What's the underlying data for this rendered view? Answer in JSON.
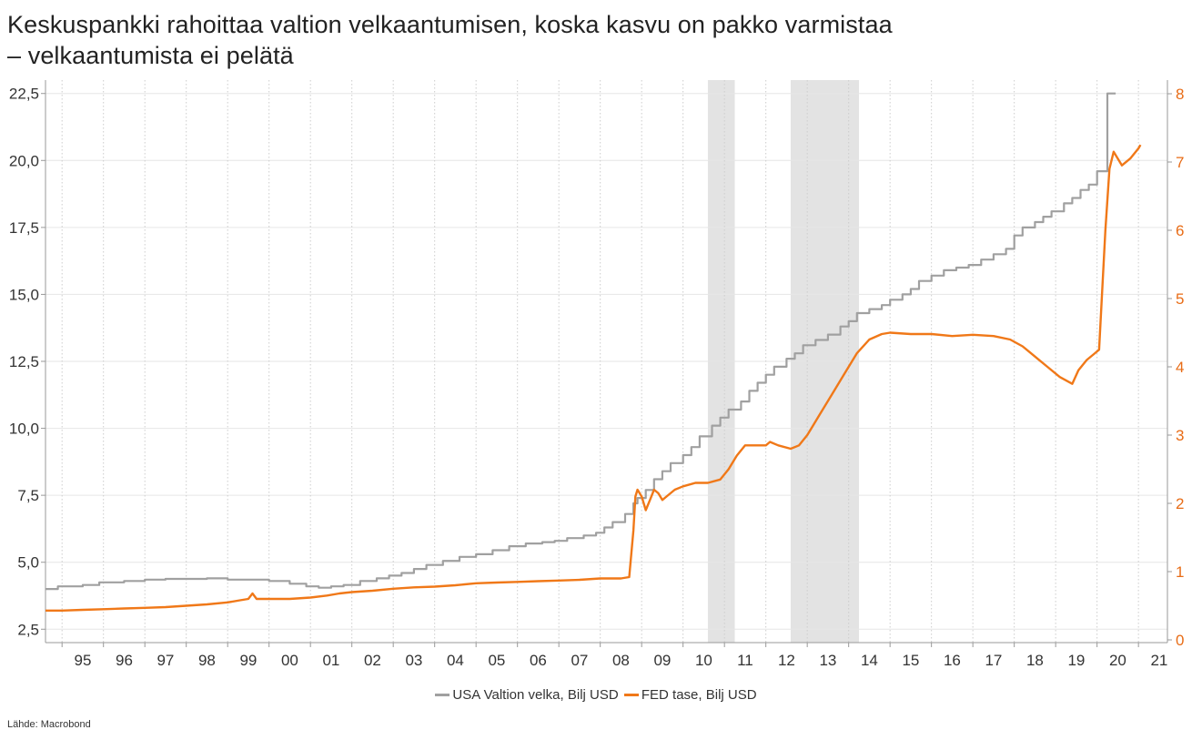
{
  "title_lines": [
    "Keskuspankki rahoittaa valtion velkaantumisen, koska kasvu on pakko varmistaa",
    "– velkaantumista ei pelätä"
  ],
  "source": "Lähde: Macrobond",
  "colors": {
    "debt": "#a0a0a0",
    "fed": "#f07818",
    "recession": "#e3e3e3",
    "grid": "#cccccc",
    "right_axis_text": "#e86c16"
  },
  "chart_data": {
    "type": "line",
    "x_unit": "year",
    "x_tick_labels": [
      "95",
      "96",
      "97",
      "98",
      "99",
      "00",
      "01",
      "02",
      "03",
      "04",
      "05",
      "06",
      "07",
      "08",
      "09",
      "10",
      "11",
      "12",
      "13",
      "14",
      "15",
      "16",
      "17",
      "18",
      "19",
      "20",
      "21"
    ],
    "x_tick_years": [
      1995,
      1996,
      1997,
      1998,
      1999,
      2000,
      2001,
      2002,
      2003,
      2004,
      2005,
      2006,
      2007,
      2008,
      2009,
      2010,
      2011,
      2012,
      2013,
      2014,
      2015,
      2016,
      2017,
      2018,
      2019,
      2020,
      2021
    ],
    "xlim": [
      1994.6,
      2021.7
    ],
    "left_axis": {
      "ylim": [
        2.0,
        23.0
      ],
      "ticks": [
        2.5,
        5.0,
        7.5,
        10.0,
        12.5,
        15.0,
        17.5,
        20.0,
        22.5
      ],
      "tick_labels": [
        "2,5",
        "5,0",
        "7,5",
        "10,0",
        "12,5",
        "15,0",
        "17,5",
        "20,0",
        "22,5"
      ]
    },
    "right_axis": {
      "ylim": [
        -0.04,
        8.2
      ],
      "ticks": [
        0,
        1,
        2,
        3,
        4,
        5,
        6,
        7,
        8
      ],
      "tick_labels": [
        "0",
        "1",
        "2",
        "3",
        "4",
        "5",
        "6",
        "7",
        "8"
      ]
    },
    "shaded_periods": [
      [
        2010.6,
        2011.25
      ],
      [
        2012.6,
        2014.25
      ]
    ],
    "legend": {
      "placement": "bottom-center",
      "entries": [
        "USA Valtion velka, Bilj USD",
        "FED tase, Bilj USD"
      ]
    },
    "series": [
      {
        "name": "USA Valtion velka, Bilj USD",
        "axis": "left",
        "step": true,
        "points": [
          [
            1994.6,
            4.0
          ],
          [
            1994.9,
            4.1
          ],
          [
            1995.5,
            4.15
          ],
          [
            1995.9,
            4.25
          ],
          [
            1996.5,
            4.3
          ],
          [
            1997.0,
            4.35
          ],
          [
            1997.5,
            4.38
          ],
          [
            1998.0,
            4.38
          ],
          [
            1998.5,
            4.4
          ],
          [
            1999.0,
            4.35
          ],
          [
            1999.5,
            4.35
          ],
          [
            2000.0,
            4.3
          ],
          [
            2000.5,
            4.2
          ],
          [
            2000.9,
            4.1
          ],
          [
            2001.2,
            4.05
          ],
          [
            2001.5,
            4.1
          ],
          [
            2001.8,
            4.15
          ],
          [
            2002.2,
            4.3
          ],
          [
            2002.6,
            4.4
          ],
          [
            2002.9,
            4.5
          ],
          [
            2003.2,
            4.6
          ],
          [
            2003.5,
            4.75
          ],
          [
            2003.8,
            4.9
          ],
          [
            2004.2,
            5.05
          ],
          [
            2004.6,
            5.2
          ],
          [
            2005.0,
            5.3
          ],
          [
            2005.4,
            5.45
          ],
          [
            2005.8,
            5.6
          ],
          [
            2006.2,
            5.7
          ],
          [
            2006.6,
            5.75
          ],
          [
            2006.9,
            5.8
          ],
          [
            2007.2,
            5.9
          ],
          [
            2007.6,
            6.0
          ],
          [
            2007.9,
            6.1
          ],
          [
            2008.1,
            6.3
          ],
          [
            2008.3,
            6.5
          ],
          [
            2008.6,
            6.8
          ],
          [
            2008.8,
            7.2
          ],
          [
            2008.9,
            7.4
          ],
          [
            2009.1,
            7.7
          ],
          [
            2009.3,
            8.1
          ],
          [
            2009.5,
            8.4
          ],
          [
            2009.7,
            8.7
          ],
          [
            2010.0,
            9.0
          ],
          [
            2010.2,
            9.3
          ],
          [
            2010.4,
            9.7
          ],
          [
            2010.7,
            10.1
          ],
          [
            2010.9,
            10.4
          ],
          [
            2011.1,
            10.7
          ],
          [
            2011.4,
            11.0
          ],
          [
            2011.6,
            11.4
          ],
          [
            2011.8,
            11.7
          ],
          [
            2012.0,
            12.0
          ],
          [
            2012.2,
            12.3
          ],
          [
            2012.5,
            12.6
          ],
          [
            2012.7,
            12.8
          ],
          [
            2012.9,
            13.1
          ],
          [
            2013.2,
            13.3
          ],
          [
            2013.5,
            13.5
          ],
          [
            2013.8,
            13.8
          ],
          [
            2014.0,
            14.0
          ],
          [
            2014.2,
            14.3
          ],
          [
            2014.5,
            14.45
          ],
          [
            2014.8,
            14.6
          ],
          [
            2015.0,
            14.8
          ],
          [
            2015.3,
            15.0
          ],
          [
            2015.5,
            15.2
          ],
          [
            2015.7,
            15.5
          ],
          [
            2016.0,
            15.7
          ],
          [
            2016.3,
            15.9
          ],
          [
            2016.6,
            16.0
          ],
          [
            2016.9,
            16.1
          ],
          [
            2017.2,
            16.3
          ],
          [
            2017.5,
            16.5
          ],
          [
            2017.8,
            16.7
          ],
          [
            2018.0,
            17.2
          ],
          [
            2018.2,
            17.5
          ],
          [
            2018.5,
            17.7
          ],
          [
            2018.7,
            17.9
          ],
          [
            2018.9,
            18.1
          ],
          [
            2019.2,
            18.4
          ],
          [
            2019.4,
            18.6
          ],
          [
            2019.6,
            18.9
          ],
          [
            2019.8,
            19.1
          ],
          [
            2020.0,
            19.6
          ],
          [
            2020.25,
            22.5
          ],
          [
            2020.45,
            22.5
          ]
        ]
      },
      {
        "name": "FED tase, Bilj USD",
        "axis": "right",
        "step": false,
        "points": [
          [
            1994.6,
            0.43
          ],
          [
            1995.0,
            0.43
          ],
          [
            1995.5,
            0.44
          ],
          [
            1996.0,
            0.45
          ],
          [
            1996.5,
            0.46
          ],
          [
            1997.0,
            0.47
          ],
          [
            1997.5,
            0.48
          ],
          [
            1998.0,
            0.5
          ],
          [
            1998.5,
            0.52
          ],
          [
            1999.0,
            0.55
          ],
          [
            1999.3,
            0.58
          ],
          [
            1999.5,
            0.6
          ],
          [
            1999.6,
            0.68
          ],
          [
            1999.7,
            0.6
          ],
          [
            2000.0,
            0.6
          ],
          [
            2000.5,
            0.6
          ],
          [
            2001.0,
            0.62
          ],
          [
            2001.4,
            0.65
          ],
          [
            2001.7,
            0.68
          ],
          [
            2002.0,
            0.7
          ],
          [
            2002.5,
            0.72
          ],
          [
            2003.0,
            0.75
          ],
          [
            2003.5,
            0.77
          ],
          [
            2004.0,
            0.78
          ],
          [
            2004.5,
            0.8
          ],
          [
            2005.0,
            0.83
          ],
          [
            2005.5,
            0.84
          ],
          [
            2006.0,
            0.85
          ],
          [
            2006.5,
            0.86
          ],
          [
            2007.0,
            0.87
          ],
          [
            2007.5,
            0.88
          ],
          [
            2008.0,
            0.9
          ],
          [
            2008.5,
            0.9
          ],
          [
            2008.7,
            0.92
          ],
          [
            2008.8,
            1.6
          ],
          [
            2008.85,
            2.1
          ],
          [
            2008.9,
            2.2
          ],
          [
            2009.0,
            2.1
          ],
          [
            2009.1,
            1.9
          ],
          [
            2009.2,
            2.05
          ],
          [
            2009.3,
            2.2
          ],
          [
            2009.4,
            2.15
          ],
          [
            2009.5,
            2.05
          ],
          [
            2009.6,
            2.1
          ],
          [
            2009.8,
            2.2
          ],
          [
            2010.0,
            2.25
          ],
          [
            2010.3,
            2.3
          ],
          [
            2010.6,
            2.3
          ],
          [
            2010.9,
            2.35
          ],
          [
            2011.1,
            2.5
          ],
          [
            2011.3,
            2.7
          ],
          [
            2011.5,
            2.85
          ],
          [
            2011.8,
            2.85
          ],
          [
            2012.0,
            2.85
          ],
          [
            2012.1,
            2.9
          ],
          [
            2012.3,
            2.85
          ],
          [
            2012.6,
            2.8
          ],
          [
            2012.8,
            2.85
          ],
          [
            2013.0,
            3.0
          ],
          [
            2013.3,
            3.3
          ],
          [
            2013.6,
            3.6
          ],
          [
            2013.9,
            3.9
          ],
          [
            2014.2,
            4.2
          ],
          [
            2014.5,
            4.4
          ],
          [
            2014.8,
            4.48
          ],
          [
            2015.0,
            4.5
          ],
          [
            2015.5,
            4.48
          ],
          [
            2016.0,
            4.48
          ],
          [
            2016.5,
            4.45
          ],
          [
            2017.0,
            4.47
          ],
          [
            2017.5,
            4.45
          ],
          [
            2017.9,
            4.4
          ],
          [
            2018.2,
            4.3
          ],
          [
            2018.5,
            4.15
          ],
          [
            2018.8,
            4.0
          ],
          [
            2019.1,
            3.85
          ],
          [
            2019.4,
            3.75
          ],
          [
            2019.55,
            3.95
          ],
          [
            2019.75,
            4.1
          ],
          [
            2019.95,
            4.2
          ],
          [
            2020.05,
            4.25
          ],
          [
            2020.2,
            6.0
          ],
          [
            2020.3,
            6.9
          ],
          [
            2020.4,
            7.15
          ],
          [
            2020.6,
            6.95
          ],
          [
            2020.8,
            7.05
          ],
          [
            2021.0,
            7.2
          ],
          [
            2021.05,
            7.25
          ]
        ]
      }
    ]
  }
}
